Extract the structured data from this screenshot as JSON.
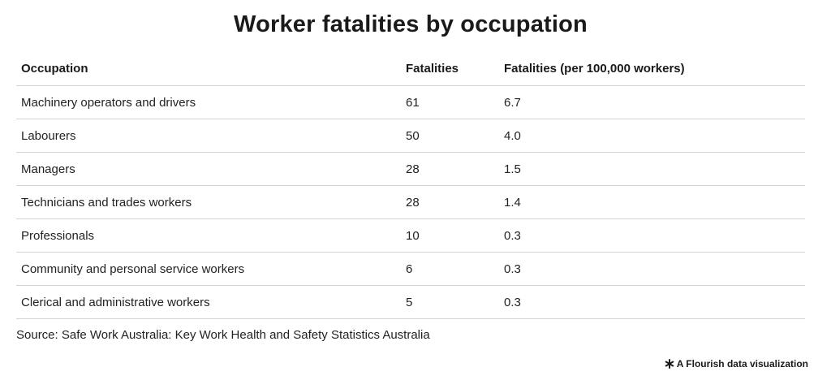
{
  "chart_data": {
    "type": "table",
    "title": "Worker fatalities by occupation",
    "columns": [
      "Occupation",
      "Fatalities",
      "Fatalities (per 100,000 workers)"
    ],
    "rows": [
      [
        "Machinery operators and drivers",
        "61",
        "6.7"
      ],
      [
        "Labourers",
        "50",
        "4.0"
      ],
      [
        "Managers",
        "28",
        "1.5"
      ],
      [
        "Technicians and trades workers",
        "28",
        "1.4"
      ],
      [
        "Professionals",
        "10",
        "0.3"
      ],
      [
        "Community and personal service workers",
        "6",
        "0.3"
      ],
      [
        "Clerical and administrative workers",
        "5",
        "0.3"
      ]
    ],
    "source": "Source: Safe Work Australia: Key Work Health and Safety Statistics Australia"
  },
  "footer": {
    "attribution_label": "A Flourish data visualization",
    "attribution_icon": "flourish-asterisk-icon"
  }
}
